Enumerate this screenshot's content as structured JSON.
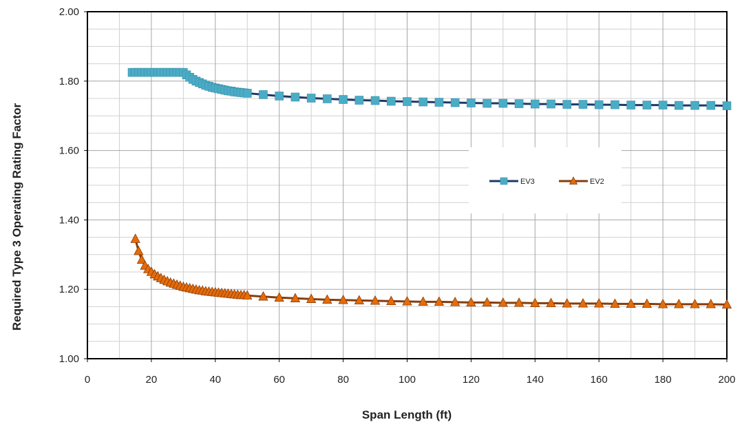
{
  "chart_data": {
    "type": "line",
    "xlabel": "Span Length (ft)",
    "ylabel": "Required Type 3 Operating Rating Factor",
    "xlim": [
      0,
      200
    ],
    "ylim": [
      1.0,
      2.0
    ],
    "x_ticks": [
      "0",
      "20",
      "40",
      "60",
      "80",
      "100",
      "120",
      "140",
      "160",
      "180",
      "200"
    ],
    "y_ticks": [
      "1.00",
      "1.20",
      "1.40",
      "1.60",
      "1.80",
      "2.00"
    ],
    "grid": true,
    "legend_position": "right-middle",
    "series": [
      {
        "name": "EV3",
        "marker": "square",
        "line_color": "#1f3864",
        "marker_color": "#4bacc6",
        "x": [
          14,
          15,
          16,
          17,
          18,
          19,
          20,
          21,
          22,
          23,
          24,
          25,
          26,
          27,
          28,
          29,
          30,
          31,
          32,
          33,
          34,
          35,
          36,
          37,
          38,
          39,
          40,
          41,
          42,
          43,
          44,
          45,
          46,
          47,
          48,
          49,
          50,
          55,
          60,
          65,
          70,
          75,
          80,
          85,
          90,
          95,
          100,
          105,
          110,
          115,
          120,
          125,
          130,
          135,
          140,
          145,
          150,
          155,
          160,
          165,
          170,
          175,
          180,
          185,
          190,
          195,
          200
        ],
        "y": [
          1.825,
          1.825,
          1.825,
          1.825,
          1.825,
          1.825,
          1.825,
          1.825,
          1.825,
          1.825,
          1.825,
          1.825,
          1.825,
          1.825,
          1.825,
          1.825,
          1.825,
          1.818,
          1.811,
          1.805,
          1.8,
          1.796,
          1.792,
          1.788,
          1.785,
          1.782,
          1.78,
          1.778,
          1.776,
          1.774,
          1.772,
          1.771,
          1.769,
          1.768,
          1.767,
          1.766,
          1.765,
          1.761,
          1.757,
          1.754,
          1.751,
          1.749,
          1.747,
          1.745,
          1.744,
          1.742,
          1.741,
          1.74,
          1.739,
          1.738,
          1.737,
          1.736,
          1.736,
          1.735,
          1.734,
          1.734,
          1.733,
          1.733,
          1.732,
          1.732,
          1.731,
          1.731,
          1.731,
          1.73,
          1.73,
          1.73,
          1.729
        ]
      },
      {
        "name": "EV2",
        "marker": "triangle",
        "line_color": "#843c0c",
        "marker_color": "#e46c0a",
        "x": [
          15,
          16,
          17,
          18,
          19,
          20,
          21,
          22,
          23,
          24,
          25,
          26,
          27,
          28,
          29,
          30,
          31,
          32,
          33,
          34,
          35,
          36,
          37,
          38,
          39,
          40,
          41,
          42,
          43,
          44,
          45,
          46,
          47,
          48,
          49,
          50,
          55,
          60,
          65,
          70,
          75,
          80,
          85,
          90,
          95,
          100,
          105,
          110,
          115,
          120,
          125,
          130,
          135,
          140,
          145,
          150,
          155,
          160,
          165,
          170,
          175,
          180,
          185,
          190,
          195,
          200
        ],
        "y": [
          1.345,
          1.31,
          1.285,
          1.268,
          1.258,
          1.25,
          1.243,
          1.237,
          1.232,
          1.227,
          1.223,
          1.219,
          1.216,
          1.213,
          1.21,
          1.207,
          1.205,
          1.203,
          1.201,
          1.199,
          1.197,
          1.196,
          1.194,
          1.193,
          1.192,
          1.191,
          1.19,
          1.189,
          1.188,
          1.187,
          1.186,
          1.185,
          1.184,
          1.183,
          1.183,
          1.182,
          1.179,
          1.176,
          1.174,
          1.172,
          1.17,
          1.169,
          1.168,
          1.167,
          1.166,
          1.165,
          1.164,
          1.164,
          1.163,
          1.162,
          1.162,
          1.161,
          1.161,
          1.16,
          1.16,
          1.159,
          1.159,
          1.159,
          1.158,
          1.158,
          1.158,
          1.157,
          1.157,
          1.157,
          1.157,
          1.156
        ]
      }
    ]
  }
}
